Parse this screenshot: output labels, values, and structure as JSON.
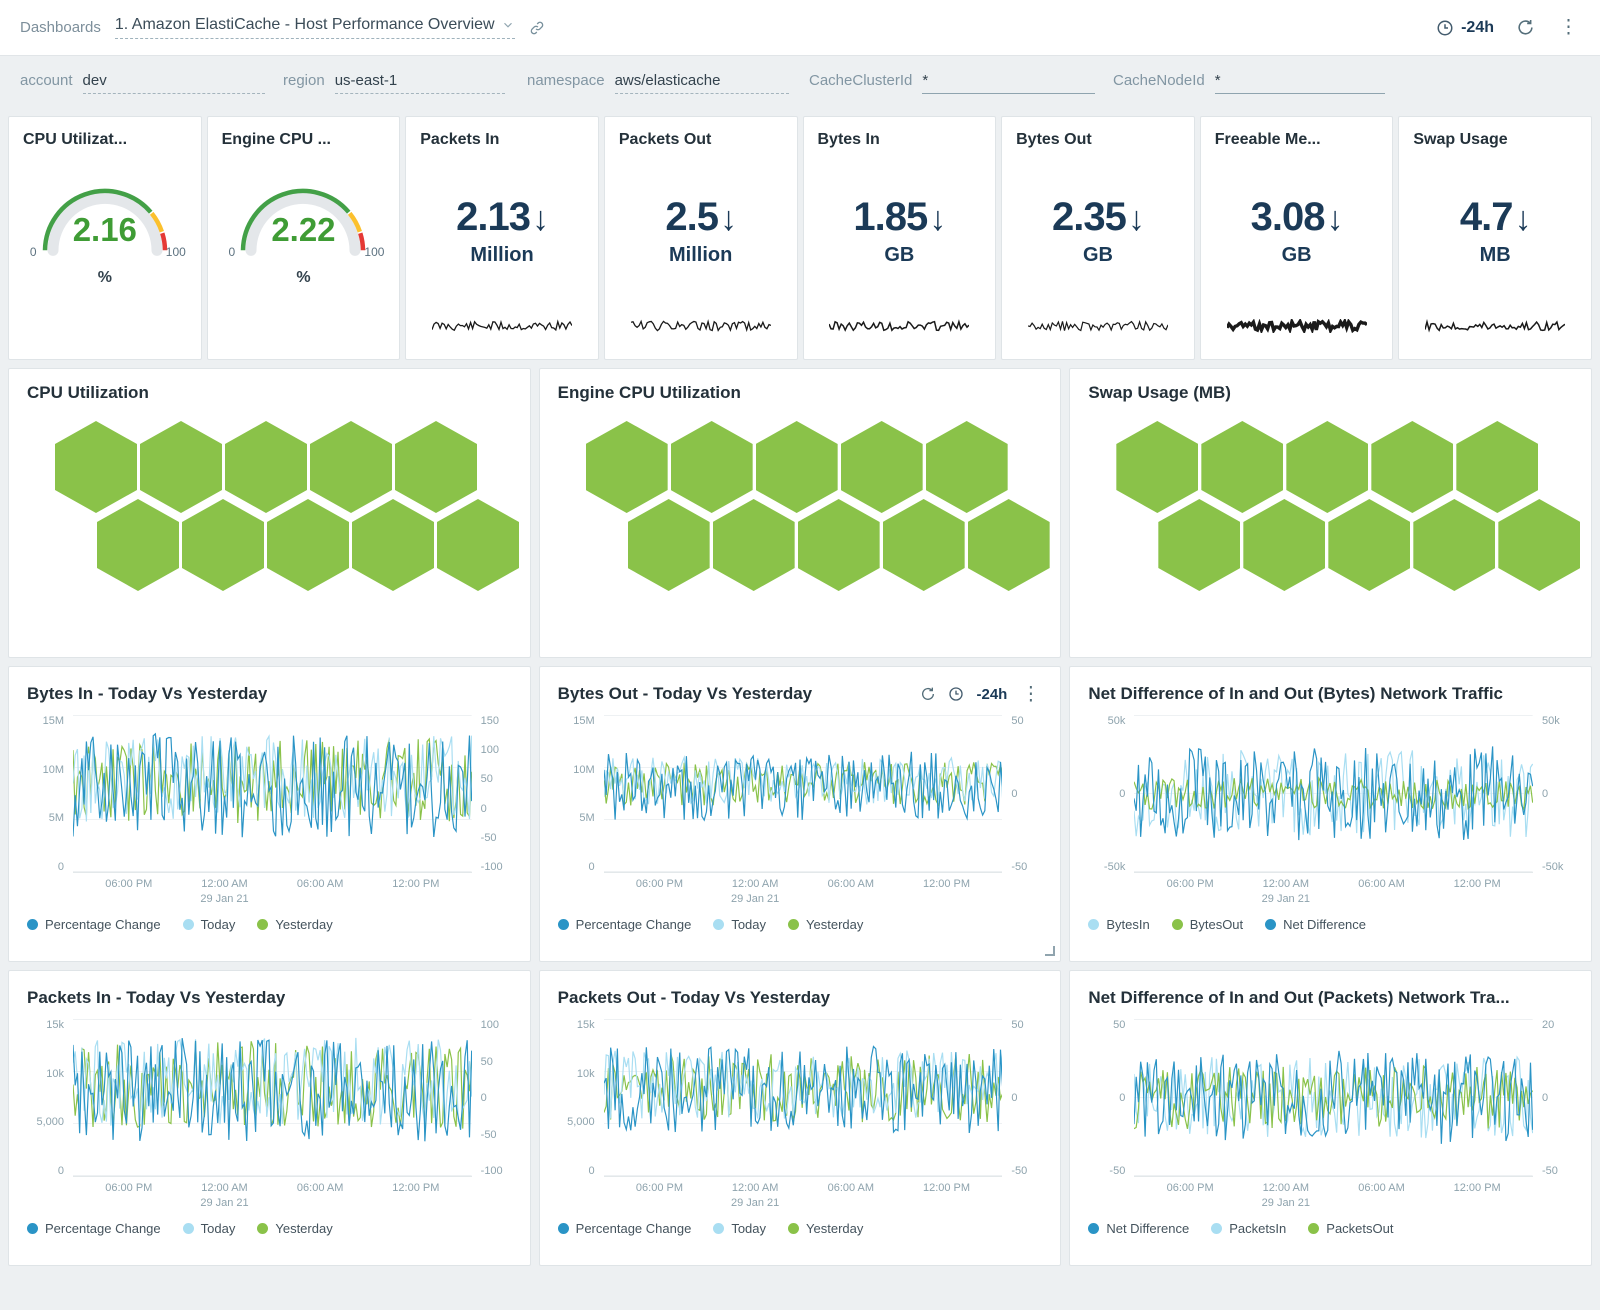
{
  "topbar": {
    "breadcrumb": "Dashboards",
    "title": "1. Amazon ElastiCache - Host Performance Overview",
    "time_range": "-24h"
  },
  "filters": [
    {
      "label": "account",
      "value": "dev"
    },
    {
      "label": "region",
      "value": "us-east-1"
    },
    {
      "label": "namespace",
      "value": "aws/elasticache"
    },
    {
      "label": "CacheClusterId",
      "value": "*"
    },
    {
      "label": "CacheNodeId",
      "value": "*"
    }
  ],
  "gauge": {
    "segments": [
      {
        "color": "#43a047",
        "from": 0,
        "to": 0.78
      },
      {
        "color": "#fbc02d",
        "from": 0.78,
        "to": 0.9
      },
      {
        "color": "#e53935",
        "from": 0.9,
        "to": 1
      }
    ]
  },
  "stat_cards": [
    {
      "title": "CPU Utilizat...",
      "type": "gauge",
      "value": "2.16",
      "min": "0",
      "max": "100",
      "unit": "%"
    },
    {
      "title": "Engine CPU ...",
      "type": "gauge",
      "value": "2.22",
      "min": "0",
      "max": "100",
      "unit": "%"
    },
    {
      "title": "Packets In",
      "type": "number",
      "value": "2.13",
      "trend": "↓",
      "unit": "Million",
      "spark": {
        "seed": 11,
        "weight": 1.3
      }
    },
    {
      "title": "Packets Out",
      "type": "number",
      "value": "2.5",
      "trend": "↓",
      "unit": "Million",
      "spark": {
        "seed": 22,
        "weight": 1.3
      }
    },
    {
      "title": "Bytes In",
      "type": "number",
      "value": "1.85",
      "trend": "↓",
      "unit": "GB",
      "spark": {
        "seed": 33,
        "weight": 1.5
      }
    },
    {
      "title": "Bytes Out",
      "type": "number",
      "value": "2.35",
      "trend": "↓",
      "unit": "GB",
      "spark": {
        "seed": 44,
        "weight": 1.2
      }
    },
    {
      "title": "Freeable Me...",
      "type": "number",
      "value": "3.08",
      "trend": "↓",
      "unit": "GB",
      "spark": {
        "seed": 55,
        "weight": 3.4
      }
    },
    {
      "title": "Swap Usage",
      "type": "number",
      "value": "4.7",
      "trend": "↓",
      "unit": "MB",
      "spark": {
        "seed": 66,
        "weight": 1.5
      }
    }
  ],
  "hex_panels": [
    {
      "title": "CPU Utilization",
      "rows": [
        5,
        5
      ]
    },
    {
      "title": "Engine CPU Utilization",
      "rows": [
        5,
        5
      ]
    },
    {
      "title": "Swap Usage (MB)",
      "rows": [
        5,
        5
      ]
    }
  ],
  "charts": [
    {
      "title": "Bytes In - Today Vs Yesterday",
      "type": "line",
      "left_ticks": [
        "15M",
        "10M",
        "5M",
        "0"
      ],
      "right_ticks": [
        "150",
        "100",
        "50",
        "0",
        "-50",
        "-100"
      ],
      "x_ticks": [
        {
          "label": "06:00 PM",
          "pos": 14
        },
        {
          "label": "12:00 AM",
          "pos": 38,
          "sub": "29 Jan 21"
        },
        {
          "label": "06:00 AM",
          "pos": 62
        },
        {
          "label": "12:00 PM",
          "pos": 86
        }
      ],
      "legend": [
        {
          "label": "Percentage Change",
          "color": "blue"
        },
        {
          "label": "Today",
          "color": "light_blue"
        },
        {
          "label": "Yesterday",
          "color": "green"
        }
      ],
      "series": [
        {
          "name": "Yesterday",
          "color": "green",
          "base": 0.42,
          "amp": 0.27,
          "seed": 101
        },
        {
          "name": "Today",
          "color": "light_blue",
          "base": 0.4,
          "amp": 0.28,
          "seed": 202
        },
        {
          "name": "Percentage Change",
          "color": "blue",
          "base": 0.45,
          "amp": 0.33,
          "seed": 303
        }
      ],
      "toolbar": false
    },
    {
      "title": "Bytes Out - Today Vs Yesterday",
      "type": "line",
      "toolbar": true,
      "toolbar_time": "-24h",
      "left_ticks": [
        "15M",
        "10M",
        "5M",
        "0"
      ],
      "right_ticks": [
        "50",
        "0",
        "-50"
      ],
      "x_ticks": [
        {
          "label": "06:00 PM",
          "pos": 14
        },
        {
          "label": "12:00 AM",
          "pos": 38,
          "sub": "29 Jan 21"
        },
        {
          "label": "06:00 AM",
          "pos": 62
        },
        {
          "label": "12:00 PM",
          "pos": 86
        }
      ],
      "legend": [
        {
          "label": "Percentage Change",
          "color": "blue"
        },
        {
          "label": "Today",
          "color": "light_blue"
        },
        {
          "label": "Yesterday",
          "color": "green"
        }
      ],
      "series": [
        {
          "name": "Yesterday",
          "color": "green",
          "base": 0.44,
          "amp": 0.14,
          "seed": 404
        },
        {
          "name": "Today",
          "color": "light_blue",
          "base": 0.42,
          "amp": 0.15,
          "seed": 505
        },
        {
          "name": "Percentage Change",
          "color": "blue",
          "base": 0.45,
          "amp": 0.22,
          "seed": 606
        }
      ]
    },
    {
      "title": "Net Difference of In and Out (Bytes) Network Traffic",
      "type": "line",
      "toolbar": false,
      "left_ticks": [
        "50k",
        "0",
        "-50k"
      ],
      "right_ticks": [
        "50k",
        "0",
        "-50k"
      ],
      "x_ticks": [
        {
          "label": "06:00 PM",
          "pos": 14
        },
        {
          "label": "12:00 AM",
          "pos": 38,
          "sub": "29 Jan 21"
        },
        {
          "label": "06:00 AM",
          "pos": 62
        },
        {
          "label": "12:00 PM",
          "pos": 86
        }
      ],
      "legend": [
        {
          "label": "BytesIn",
          "color": "light_blue"
        },
        {
          "label": "BytesOut",
          "color": "green"
        },
        {
          "label": "Net Difference",
          "color": "blue"
        }
      ],
      "series": [
        {
          "name": "BytesIn",
          "color": "light_blue",
          "base": 0.5,
          "amp": 0.28,
          "seed": 707
        },
        {
          "name": "BytesOut",
          "color": "green",
          "base": 0.5,
          "amp": 0.1,
          "seed": 808
        },
        {
          "name": "Net Difference",
          "color": "blue",
          "base": 0.5,
          "amp": 0.3,
          "seed": 909
        }
      ]
    },
    {
      "title": "Packets In - Today Vs Yesterday",
      "type": "line",
      "toolbar": false,
      "left_ticks": [
        "15k",
        "10k",
        "5,000",
        "0"
      ],
      "right_ticks": [
        "100",
        "50",
        "0",
        "-50",
        "-100"
      ],
      "x_ticks": [
        {
          "label": "06:00 PM",
          "pos": 14
        },
        {
          "label": "12:00 AM",
          "pos": 38,
          "sub": "29 Jan 21"
        },
        {
          "label": "06:00 AM",
          "pos": 62
        },
        {
          "label": "12:00 PM",
          "pos": 86
        }
      ],
      "legend": [
        {
          "label": "Percentage Change",
          "color": "blue"
        },
        {
          "label": "Today",
          "color": "light_blue"
        },
        {
          "label": "Yesterday",
          "color": "green"
        }
      ],
      "series": [
        {
          "name": "Yesterday",
          "color": "green",
          "base": 0.42,
          "amp": 0.28,
          "seed": 111
        },
        {
          "name": "Today",
          "color": "light_blue",
          "base": 0.4,
          "amp": 0.28,
          "seed": 222
        },
        {
          "name": "Percentage Change",
          "color": "blue",
          "base": 0.45,
          "amp": 0.33,
          "seed": 333
        }
      ]
    },
    {
      "title": "Packets Out - Today Vs Yesterday",
      "type": "line",
      "toolbar": false,
      "left_ticks": [
        "15k",
        "10k",
        "5,000",
        "0"
      ],
      "right_ticks": [
        "50",
        "0",
        "-50"
      ],
      "x_ticks": [
        {
          "label": "06:00 PM",
          "pos": 14
        },
        {
          "label": "12:00 AM",
          "pos": 38,
          "sub": "29 Jan 21"
        },
        {
          "label": "06:00 AM",
          "pos": 62
        },
        {
          "label": "12:00 PM",
          "pos": 86
        }
      ],
      "legend": [
        {
          "label": "Percentage Change",
          "color": "blue"
        },
        {
          "label": "Today",
          "color": "light_blue"
        },
        {
          "label": "Yesterday",
          "color": "green"
        }
      ],
      "series": [
        {
          "name": "Yesterday",
          "color": "green",
          "base": 0.44,
          "amp": 0.22,
          "seed": 444
        },
        {
          "name": "Today",
          "color": "light_blue",
          "base": 0.42,
          "amp": 0.22,
          "seed": 555
        },
        {
          "name": "Percentage Change",
          "color": "blue",
          "base": 0.45,
          "amp": 0.28,
          "seed": 666
        }
      ]
    },
    {
      "title": "Net Difference of In and Out (Packets) Network Tra...",
      "type": "line",
      "toolbar": false,
      "left_ticks": [
        "50",
        "0",
        "-50"
      ],
      "right_ticks": [
        "20",
        "0",
        "-50"
      ],
      "x_ticks": [
        {
          "label": "06:00 PM",
          "pos": 14
        },
        {
          "label": "12:00 AM",
          "pos": 38,
          "sub": "29 Jan 21"
        },
        {
          "label": "06:00 AM",
          "pos": 62
        },
        {
          "label": "12:00 PM",
          "pos": 86
        }
      ],
      "legend": [
        {
          "label": "Net Difference",
          "color": "blue"
        },
        {
          "label": "PacketsIn",
          "color": "light_blue"
        },
        {
          "label": "PacketsOut",
          "color": "green"
        }
      ],
      "series": [
        {
          "name": "PacketsIn",
          "color": "light_blue",
          "base": 0.5,
          "amp": 0.26,
          "seed": 777
        },
        {
          "name": "PacketsOut",
          "color": "green",
          "base": 0.5,
          "amp": 0.2,
          "seed": 888
        },
        {
          "name": "Net Difference",
          "color": "blue",
          "base": 0.5,
          "amp": 0.3,
          "seed": 999
        }
      ]
    }
  ],
  "colors": {
    "blue": "#2a94c6",
    "light_blue": "#a9def2",
    "green": "#8ac249",
    "hex": "#8ac249",
    "spark": "#1a1a1a",
    "grid": "#eef1f3"
  }
}
